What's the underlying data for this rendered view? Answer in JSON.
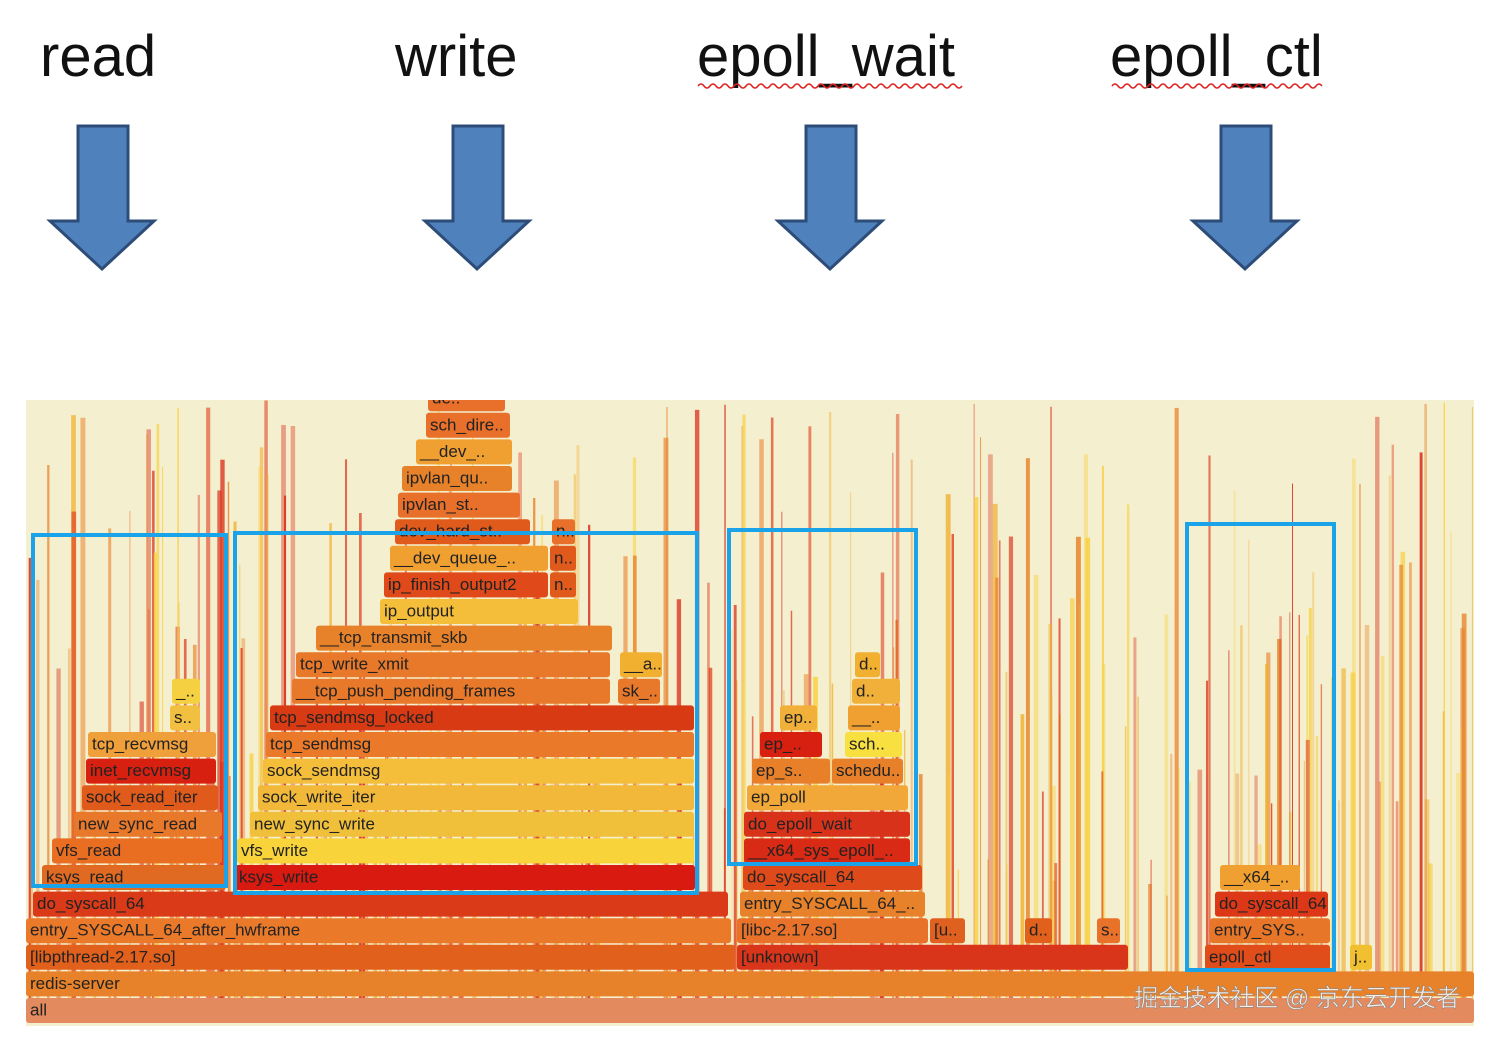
{
  "headings": [
    "read",
    "write",
    "epoll_wait",
    "epoll_ctl"
  ],
  "frames": [
    "all",
    "redis-server",
    "[libpthread-2.17.so]",
    "[unknown]",
    "epoll_ctl",
    "j..",
    "entry_SYSCALL_64_after_hwframe",
    "[libc-2.17.so]",
    "[u..",
    "d..",
    "s..",
    "entry_SYS..",
    "do_syscall_64",
    "entry_SYSCALL_64_..",
    "do_syscall_64",
    "do_syscall_64",
    "ksys_read",
    "ksys_write",
    "__x64_..",
    "vfs_read",
    "vfs_write",
    "__x64_sys_epoll_..",
    "new_sync_read",
    "new_sync_write",
    "do_epoll_wait",
    "sock_read_iter",
    "sock_write_iter",
    "ep_poll",
    "inet_recvmsg",
    "sock_sendmsg",
    "ep_s..",
    "schedu..",
    "tcp_recvmsg",
    "tcp_sendmsg",
    "ep_..",
    "sch..",
    "s..",
    "tcp_sendmsg_locked",
    "ep..",
    "__..",
    "_..",
    "__tcp_push_pending_frames",
    "sk_..",
    "d..",
    "tcp_write_xmit",
    "__a..",
    "d..",
    "__tcp_transmit_skb",
    "ip_output",
    "ip_finish_output2",
    "n..",
    "__dev_queue_..",
    "n..",
    "dev_hard_st..",
    "n..",
    "ipvlan_st..",
    "ipvlan_qu..",
    "__dev_..",
    "sch_dire..",
    "de.."
  ],
  "watermark": "掘金技术社区 @ 京东云开发者"
}
